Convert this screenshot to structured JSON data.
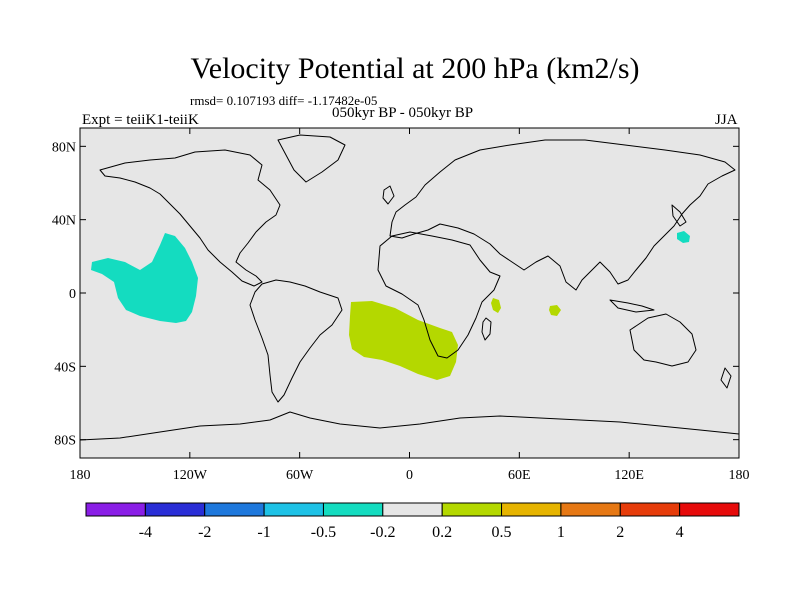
{
  "title": "Velocity Potential at 200 hPa (km2/s)",
  "stats_text": "rmsd= 0.107193 diff= -1.17482e-05",
  "left_label": "Expt = teiiK1-teiiK",
  "center_label": "050kyr BP - 050kyr BP",
  "right_label": "JJA",
  "map": {
    "projection": "cylindrical equidistant",
    "lon_range": [
      -180,
      180
    ],
    "lat_range": [
      -90,
      90
    ],
    "background_color": "#e6e6e6",
    "lat_tick_labels": [
      "80N",
      "40N",
      "0",
      "40S",
      "80S"
    ],
    "lon_tick_labels": [
      "180",
      "120W",
      "60W",
      "0",
      "60E",
      "120E",
      "180"
    ]
  },
  "colorbar": {
    "boundary_labels": [
      "-4",
      "-2",
      "-1",
      "-0.5",
      "-0.2",
      "0.2",
      "0.5",
      "1",
      "2",
      "4"
    ],
    "colors": [
      "#8a1ee6",
      "#2a2ed6",
      "#1e78dc",
      "#1ec2e6",
      "#14dcc0",
      "#e6e6e6",
      "#b4d800",
      "#e6b400",
      "#e67814",
      "#e63c0a",
      "#e60a0a"
    ]
  },
  "anomaly_regions": [
    {
      "name": "central-pacific-negative",
      "level": "-0.5 to -0.2",
      "color": "#14dcc0"
    },
    {
      "name": "south-atlantic-positive",
      "level": "0.2 to 0.5",
      "color": "#b4d800"
    },
    {
      "name": "madagascar-positive",
      "level": "0.2 to 0.5",
      "color": "#b4d800"
    },
    {
      "name": "indian-ocean-positive",
      "level": "0.2 to 0.5",
      "color": "#b4d800"
    },
    {
      "name": "japan-negative",
      "level": "-0.5 to -0.2",
      "color": "#14dcc0"
    }
  ]
}
